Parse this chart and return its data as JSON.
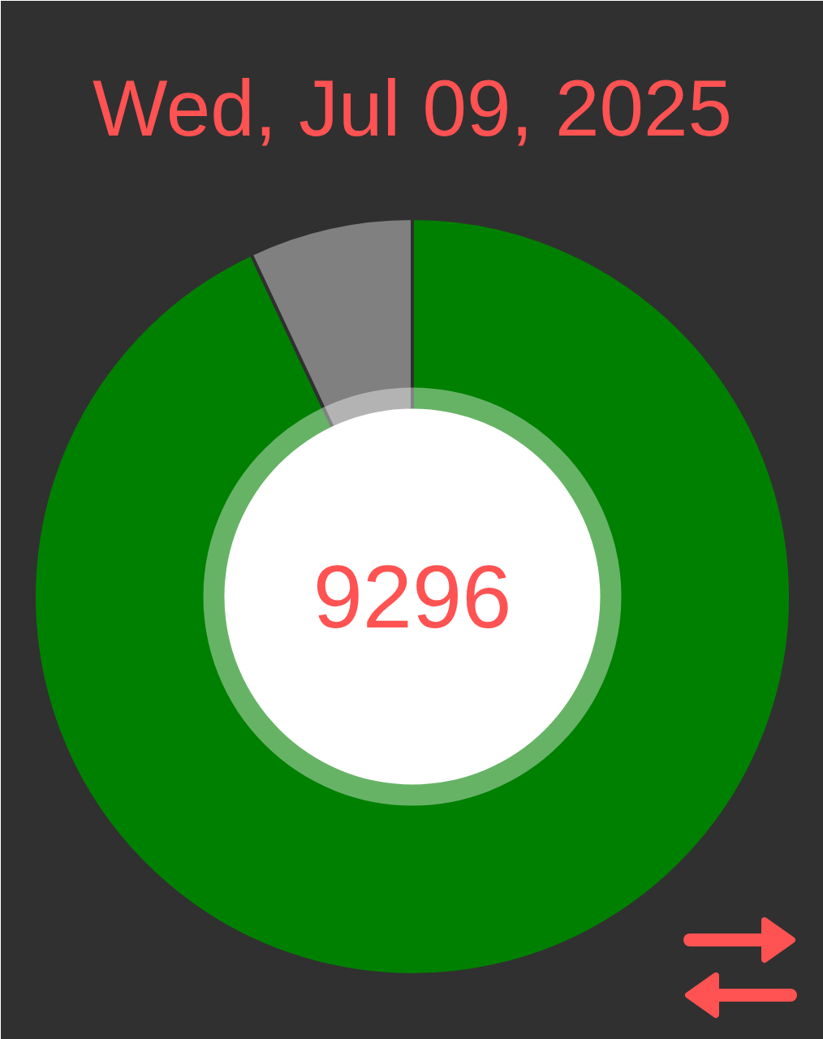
{
  "chart_data": {
    "type": "donut",
    "title": "Wed, Jul 09, 2025",
    "categories": [
      null,
      null
    ],
    "values": [
      93,
      7
    ],
    "colors": [
      "#008000",
      "#808080"
    ],
    "annotations": [
      "9296"
    ]
  }
}
